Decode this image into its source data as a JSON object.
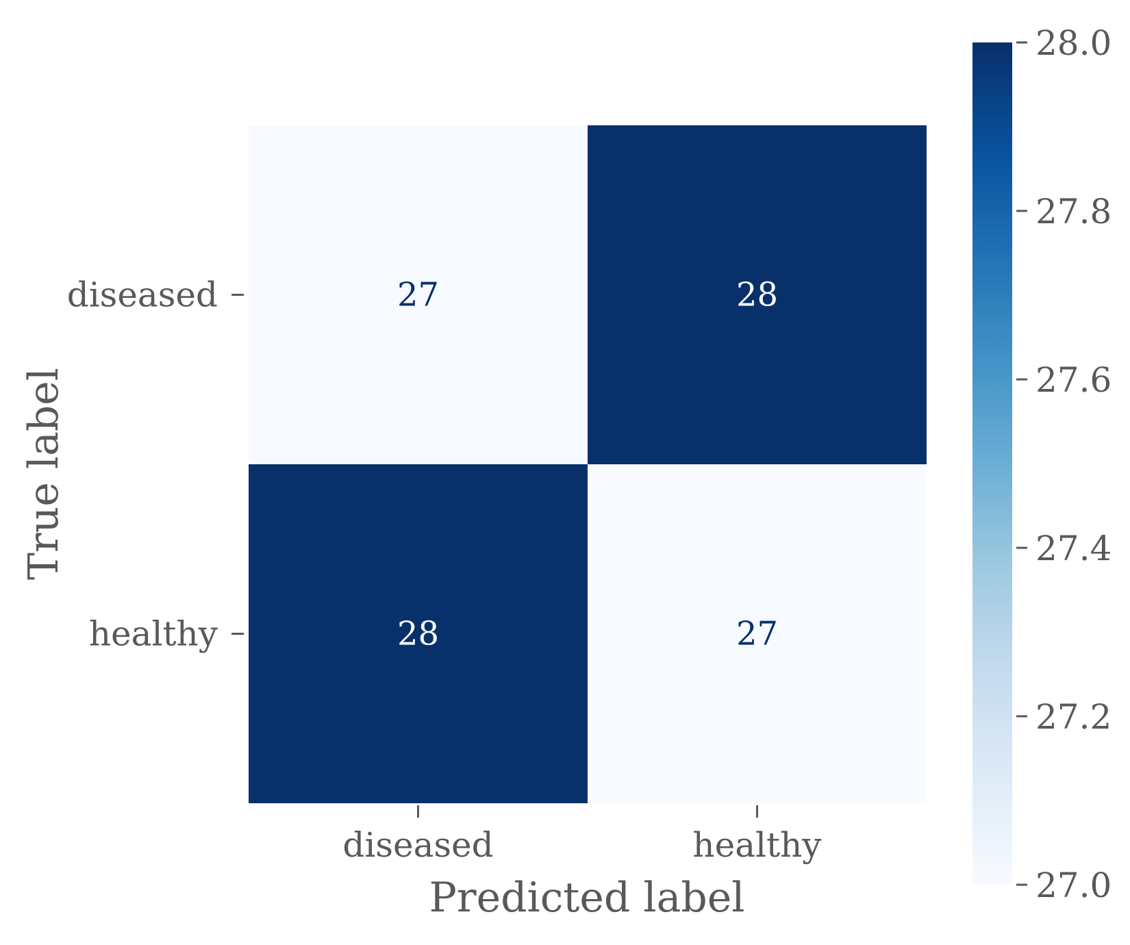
{
  "chart_data": {
    "type": "heatmap",
    "title": "",
    "xlabel": "Predicted label",
    "ylabel": "True label",
    "x_categories": [
      "diseased",
      "healthy"
    ],
    "y_categories": [
      "diseased",
      "healthy"
    ],
    "values": [
      [
        27,
        28
      ],
      [
        28,
        27
      ]
    ],
    "cell_labels": [
      [
        "27",
        "28"
      ],
      [
        "28",
        "27"
      ]
    ],
    "colormap": "Blues",
    "colors": {
      "low": "#f7fbff",
      "high": "#08306b",
      "text_on_light": "#08306b",
      "text_on_dark": "#ffffff",
      "axis_text": "#595959",
      "tick": "#595959"
    },
    "colorbar": {
      "range": [
        27.0,
        28.0
      ],
      "ticks": [
        27.0,
        27.2,
        27.4,
        27.6,
        27.8,
        28.0
      ],
      "tick_labels": [
        "27.0",
        "27.2",
        "27.4",
        "27.6",
        "27.8",
        "28.0"
      ],
      "placement": "right"
    },
    "grid": false,
    "legend": "colorbar-right"
  }
}
